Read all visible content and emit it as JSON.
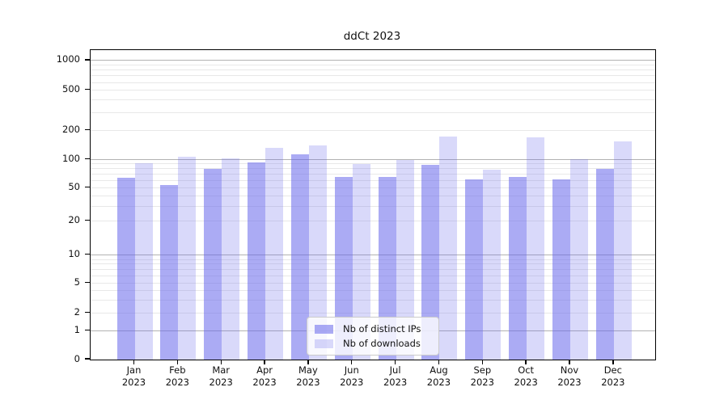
{
  "title": "ddCt 2023",
  "legend": {
    "items": [
      {
        "label": "Nb of distinct IPs",
        "color": "rgba(102,102,235,0.55)"
      },
      {
        "label": "Nb of downloads",
        "color": "rgba(102,102,235,0.25)"
      }
    ],
    "position": "lower center"
  },
  "colors": {
    "bar_distinct_ips": "rgba(102,102,235,0.55)",
    "bar_downloads": "rgba(102,102,235,0.25)",
    "grid_major": "#b2b2b2",
    "grid_minor": "#e8e8e8",
    "spine": "#000000"
  },
  "chart_data": {
    "type": "bar",
    "title": "ddCt 2023",
    "categories": [
      "Jan 2023",
      "Feb 2023",
      "Mar 2023",
      "Apr 2023",
      "May 2023",
      "Jun 2023",
      "Jul 2023",
      "Aug 2023",
      "Sep 2023",
      "Oct 2023",
      "Nov 2023",
      "Dec 2023"
    ],
    "series": [
      {
        "name": "Nb of distinct IPs",
        "values": [
          64,
          54,
          80,
          93,
          113,
          65,
          66,
          87,
          62,
          65,
          62,
          80
        ]
      },
      {
        "name": "Nb of downloads",
        "values": [
          91,
          106,
          103,
          132,
          140,
          89,
          99,
          174,
          78,
          169,
          101,
          155
        ]
      }
    ],
    "xlabel": "",
    "ylabel": "",
    "yscale": "symlog",
    "ylim": [
      0,
      1000
    ],
    "yticks": [
      0,
      1,
      2,
      5,
      10,
      20,
      50,
      100,
      200,
      500,
      1000
    ],
    "grid": true,
    "legend_position": "lower center"
  }
}
